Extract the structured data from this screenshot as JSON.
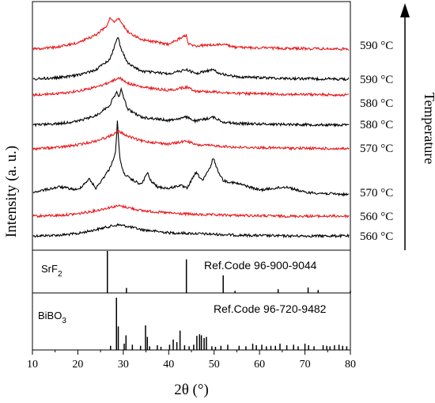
{
  "chart_data": [
    {
      "type": "line",
      "panel": "xrd-patterns",
      "ylabel": "Intensity (a. u.)",
      "xlim": [
        10,
        80
      ],
      "y_ticks_shown": false,
      "temperature_axis_label": "Temperature",
      "series": [
        {
          "label": "560 °C",
          "color": "#000000",
          "baseline": 0.0,
          "x": [
            10,
            16,
            20,
            24,
            27,
            29,
            31,
            34,
            40,
            46,
            55,
            65,
            80
          ],
          "y": [
            0.0,
            0.01,
            0.03,
            0.08,
            0.12,
            0.14,
            0.12,
            0.08,
            0.04,
            0.03,
            0.01,
            0.0,
            0.0
          ]
        },
        {
          "label": "560 °C",
          "color": "#e8171b",
          "baseline": 0.5,
          "x": [
            10,
            16,
            20,
            24,
            27,
            29,
            31,
            34,
            40,
            46,
            55,
            65,
            80
          ],
          "y": [
            0.0,
            0.01,
            0.03,
            0.07,
            0.11,
            0.13,
            0.11,
            0.07,
            0.04,
            0.02,
            0.01,
            0.0,
            0.0
          ]
        },
        {
          "label": "570 °C",
          "color": "#000000",
          "baseline": 1.0,
          "x": [
            10,
            16,
            20,
            22.5,
            24,
            27,
            28.3,
            28.7,
            29.2,
            30,
            31.5,
            34,
            35.3,
            36,
            37.5,
            40,
            42.5,
            44,
            46,
            47.5,
            49.3,
            49.8,
            50.6,
            52,
            56,
            60,
            66,
            70,
            80
          ],
          "y": [
            0.05,
            0.12,
            0.08,
            0.22,
            0.1,
            0.35,
            0.55,
            0.95,
            0.5,
            0.3,
            0.22,
            0.15,
            0.3,
            0.2,
            0.12,
            0.1,
            0.14,
            0.1,
            0.3,
            0.2,
            0.38,
            0.5,
            0.35,
            0.2,
            0.15,
            0.08,
            0.12,
            0.05,
            0.02
          ]
        },
        {
          "label": "570 °C",
          "color": "#e8171b",
          "baseline": 2.0,
          "x": [
            10,
            16,
            20,
            24,
            27,
            29,
            31,
            34,
            40,
            44,
            46,
            50,
            55,
            65,
            80
          ],
          "y": [
            0.0,
            0.02,
            0.05,
            0.1,
            0.16,
            0.22,
            0.16,
            0.1,
            0.06,
            0.1,
            0.05,
            0.04,
            0.02,
            0.01,
            0.0
          ]
        },
        {
          "label": "580 °C",
          "color": "#000000",
          "baseline": 2.5,
          "x": [
            10,
            16,
            20,
            24,
            27,
            28.5,
            29,
            29.5,
            31,
            34,
            40,
            44,
            46,
            49.8,
            52,
            55,
            65,
            80
          ],
          "y": [
            0.0,
            0.02,
            0.05,
            0.12,
            0.25,
            0.42,
            0.35,
            0.45,
            0.2,
            0.1,
            0.06,
            0.1,
            0.05,
            0.1,
            0.04,
            0.02,
            0.01,
            0.0
          ]
        },
        {
          "label": "580 °C",
          "color": "#e8171b",
          "baseline": 3.05,
          "x": [
            10,
            16,
            20,
            24,
            27,
            29,
            31,
            34,
            40,
            44,
            46,
            50,
            55,
            65,
            80
          ],
          "y": [
            0.0,
            0.02,
            0.05,
            0.1,
            0.16,
            0.22,
            0.15,
            0.1,
            0.06,
            0.1,
            0.05,
            0.04,
            0.02,
            0.01,
            0.0
          ]
        },
        {
          "label": "590 °C",
          "color": "#000000",
          "baseline": 3.6,
          "x": [
            10,
            16,
            20,
            24,
            27,
            28.3,
            28.8,
            29.4,
            31,
            34,
            40,
            44,
            46,
            49.5,
            52,
            55,
            65,
            80
          ],
          "y": [
            0.0,
            0.02,
            0.05,
            0.12,
            0.25,
            0.45,
            0.55,
            0.4,
            0.2,
            0.1,
            0.07,
            0.12,
            0.07,
            0.12,
            0.06,
            0.03,
            0.01,
            0.0
          ]
        },
        {
          "label": "590 °C",
          "color": "#e8171b",
          "baseline": 4.3,
          "x": [
            10,
            16,
            20,
            24,
            26.5,
            27,
            28,
            29,
            31,
            34,
            40,
            43.9,
            44.3,
            46,
            52,
            55,
            65,
            80
          ],
          "y": [
            0.0,
            0.03,
            0.08,
            0.18,
            0.3,
            0.4,
            0.35,
            0.38,
            0.22,
            0.12,
            0.06,
            0.18,
            0.06,
            0.04,
            0.06,
            0.02,
            0.01,
            0.0
          ]
        }
      ]
    },
    {
      "type": "bar",
      "panel": "reference-srf2",
      "phase": "SrF2",
      "annotation": "Ref.Code 96-900-9044",
      "xlim": [
        10,
        80
      ],
      "x": [
        26.5,
        30.7,
        43.9,
        52.0,
        54.6,
        64.1,
        70.7,
        72.9,
        80.0
      ],
      "values": [
        100,
        12,
        80,
        42,
        5,
        9,
        13,
        7,
        5
      ]
    },
    {
      "type": "bar",
      "panel": "reference-bibo3",
      "phase": "BiBO3",
      "annotation": "Ref.Code 96-720-9482",
      "xlabel": "2θ (°)",
      "xlim": [
        10,
        80
      ],
      "xticks": [
        10,
        20,
        30,
        40,
        50,
        60,
        70,
        80
      ],
      "x": [
        27.2,
        28.5,
        28.9,
        30.2,
        30.6,
        32.0,
        33.8,
        34.9,
        35.3,
        35.8,
        37.5,
        38.3,
        40.2,
        41.0,
        41.8,
        42.5,
        43.5,
        44.5,
        45.5,
        46.2,
        46.8,
        47.2,
        47.8,
        48.3,
        49.5,
        50.3,
        51.5,
        53.0,
        55.5,
        57.0,
        58.5,
        59.3,
        60.5,
        61.5,
        62.5,
        63.5,
        64.5,
        66.0,
        67.5,
        68.5,
        70.0,
        70.8,
        72.0,
        74.0,
        74.8,
        75.5,
        76.5,
        77.5,
        78.3,
        79.2
      ],
      "values": [
        8,
        100,
        45,
        12,
        28,
        10,
        8,
        47,
        25,
        7,
        9,
        6,
        10,
        20,
        15,
        37,
        9,
        7,
        10,
        27,
        30,
        28,
        23,
        25,
        7,
        6,
        8,
        10,
        8,
        7,
        12,
        9,
        10,
        7,
        8,
        8,
        12,
        9,
        10,
        7,
        12,
        9,
        7,
        9,
        8,
        7,
        9,
        10,
        8,
        7
      ]
    }
  ]
}
